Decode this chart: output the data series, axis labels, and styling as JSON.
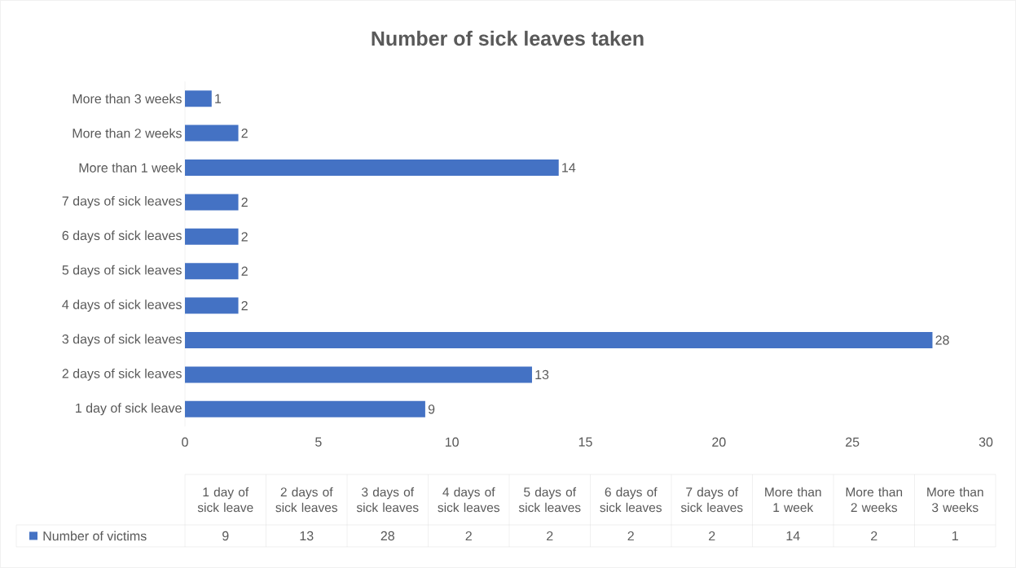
{
  "chart_data": {
    "type": "bar",
    "orientation": "horizontal",
    "title": "Number of sick leaves taken",
    "categories": [
      "More than 3 weeks",
      "More than 2 weeks",
      "More than 1 week",
      "7 days of sick leaves",
      "6 days of sick leaves",
      "5 days of sick leaves",
      "4 days of sick leaves",
      "3 days of sick leaves",
      "2 days of sick leaves",
      "1 day of sick leave"
    ],
    "series": [
      {
        "name": "Number of victims",
        "color": "#4472c4",
        "values": [
          1,
          2,
          14,
          2,
          2,
          2,
          2,
          28,
          13,
          9
        ],
        "value_labels": [
          "1",
          "2",
          "14",
          "2",
          "2",
          "2",
          "2",
          "28",
          "13",
          "9"
        ]
      }
    ],
    "xlim": [
      0,
      30
    ],
    "xticks": [
      0,
      5,
      10,
      15,
      20,
      25,
      30
    ],
    "legend": "bottom"
  }
}
